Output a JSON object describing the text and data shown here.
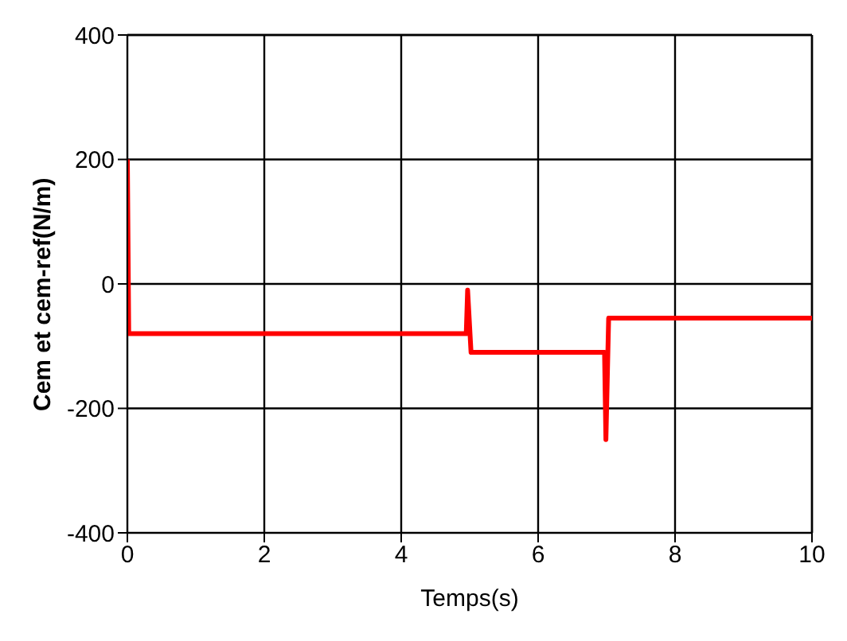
{
  "chart_data": {
    "type": "line",
    "xlabel": "Temps(s)",
    "ylabel": "Cem et cem-ref(N/m)",
    "x": [
      0,
      0.02,
      4.95,
      4.97,
      5.02,
      6.97,
      6.99,
      7.03,
      10
    ],
    "series": [
      {
        "color": "#ff0000",
        "values": [
          200,
          -80,
          -80,
          -10,
          -110,
          -110,
          -250,
          -55,
          -55
        ]
      }
    ],
    "xlim": [
      0,
      10
    ],
    "xticks": [
      0,
      2,
      4,
      6,
      8,
      10
    ],
    "ylim": [
      -400,
      400
    ],
    "yticks": [
      -400,
      -200,
      0,
      200,
      400
    ],
    "grid": true,
    "marker": "none",
    "line_style": "solid"
  }
}
